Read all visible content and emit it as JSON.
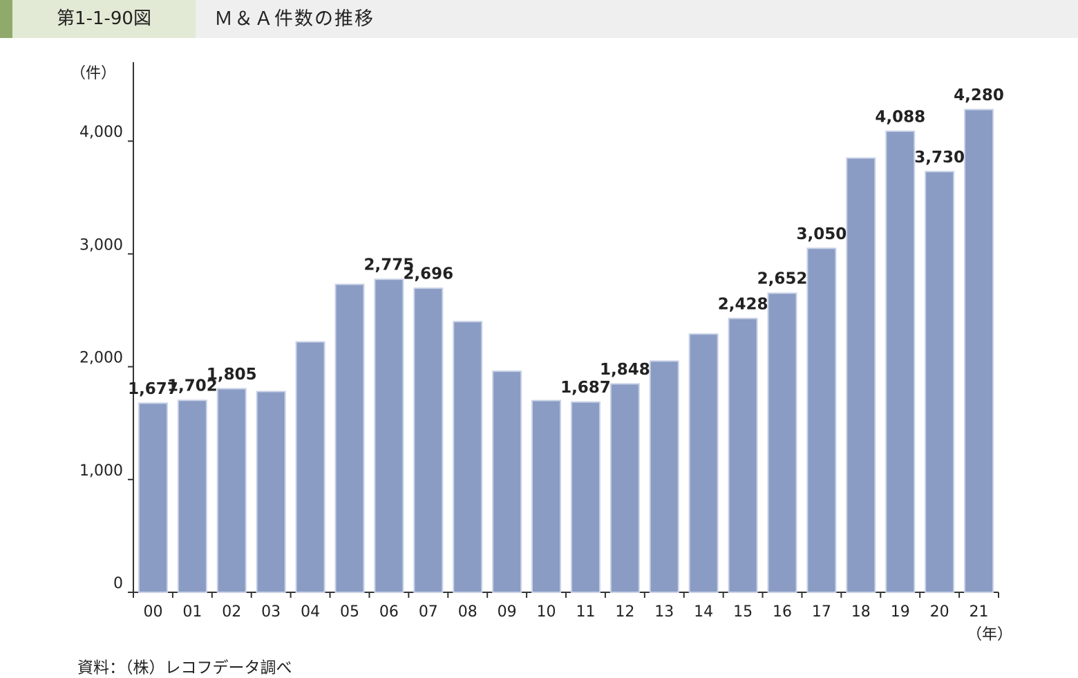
{
  "chart_data": {
    "type": "bar",
    "figure_label": "第1-1-90図",
    "title": "Ｍ＆Ａ件数の推移",
    "y_unit": "（件）",
    "x_unit": "（年）",
    "source": "資料：（株）レコフデータ調べ",
    "categories": [
      "00",
      "01",
      "02",
      "03",
      "04",
      "05",
      "06",
      "07",
      "08",
      "09",
      "10",
      "11",
      "12",
      "13",
      "14",
      "15",
      "16",
      "17",
      "18",
      "19",
      "20",
      "21"
    ],
    "values": [
      1677,
      1702,
      1805,
      1780,
      2220,
      2730,
      2775,
      2696,
      2400,
      1960,
      1700,
      1687,
      1848,
      2050,
      2290,
      2428,
      2652,
      3050,
      3850,
      4088,
      3730,
      4280
    ],
    "value_labels": [
      "1,677",
      "1,702",
      "1,805",
      null,
      null,
      null,
      "2,775",
      "2,696",
      null,
      null,
      null,
      "1,687",
      "1,848",
      null,
      null,
      "2,428",
      "2,652",
      "3,050",
      null,
      "4,088",
      "3,730",
      "4,280"
    ],
    "color": "#8a9cc4",
    "ylim": [
      0,
      4700
    ],
    "yticks": [
      0,
      {
        "value": 1000,
        "label": "1,000"
      },
      {
        "value": 2000,
        "label": "2,000"
      },
      {
        "value": 3000,
        "label": "3,000"
      },
      {
        "value": 4000,
        "label": "4,000"
      }
    ]
  }
}
